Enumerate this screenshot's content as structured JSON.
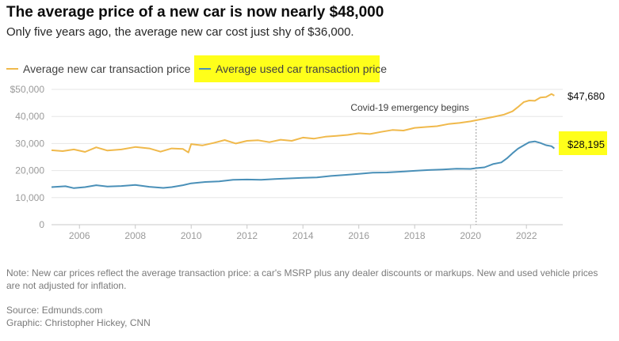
{
  "header": {
    "title": "The average price of a new car is now nearly $48,000",
    "subtitle": "Only five years ago, the average new car cost just shy of $36,000."
  },
  "legend": [
    {
      "label": "Average new car transaction price",
      "color": "#f0b94b"
    },
    {
      "label": "Average used car transaction price",
      "color": "#4a90b8",
      "highlighted": true
    }
  ],
  "highlight_color": "#ffff1a",
  "chart_data": {
    "type": "line",
    "x_range": [
      2005,
      2023.3
    ],
    "ylim": [
      0,
      50000
    ],
    "y_ticks": [
      0,
      10000,
      20000,
      30000,
      40000,
      50000
    ],
    "y_tick_labels": [
      "0",
      "10,000",
      "20,000",
      "30,000",
      "40,000",
      "$50,000"
    ],
    "x_ticks": [
      2006,
      2008,
      2010,
      2012,
      2014,
      2016,
      2018,
      2020,
      2022
    ],
    "x_tick_labels": [
      "2006",
      "2008",
      "2010",
      "2012",
      "2014",
      "2016",
      "2018",
      "2020",
      "2022"
    ],
    "grid": true,
    "annotation": {
      "x": 2020.2,
      "label": "Covid-19 emergency begins"
    },
    "series": [
      {
        "name": "Average new car transaction price",
        "color": "#f0b94b",
        "end_label": "$47,680",
        "points": [
          [
            2005.0,
            27500
          ],
          [
            2005.4,
            27200
          ],
          [
            2005.8,
            27800
          ],
          [
            2006.2,
            26900
          ],
          [
            2006.6,
            28600
          ],
          [
            2007.0,
            27400
          ],
          [
            2007.5,
            27800
          ],
          [
            2008.0,
            28700
          ],
          [
            2008.5,
            28200
          ],
          [
            2008.9,
            27000
          ],
          [
            2009.3,
            28200
          ],
          [
            2009.7,
            28000
          ],
          [
            2009.9,
            26700
          ],
          [
            2010.0,
            29800
          ],
          [
            2010.4,
            29300
          ],
          [
            2010.8,
            30200
          ],
          [
            2011.2,
            31300
          ],
          [
            2011.6,
            30000
          ],
          [
            2012.0,
            31000
          ],
          [
            2012.4,
            31200
          ],
          [
            2012.8,
            30500
          ],
          [
            2013.2,
            31400
          ],
          [
            2013.6,
            31000
          ],
          [
            2014.0,
            32200
          ],
          [
            2014.4,
            31800
          ],
          [
            2014.8,
            32500
          ],
          [
            2015.2,
            32800
          ],
          [
            2015.6,
            33200
          ],
          [
            2016.0,
            33800
          ],
          [
            2016.4,
            33500
          ],
          [
            2016.8,
            34300
          ],
          [
            2017.2,
            35000
          ],
          [
            2017.6,
            34800
          ],
          [
            2018.0,
            35800
          ],
          [
            2018.4,
            36100
          ],
          [
            2018.8,
            36400
          ],
          [
            2019.2,
            37200
          ],
          [
            2019.6,
            37600
          ],
          [
            2020.0,
            38200
          ],
          [
            2020.4,
            39000
          ],
          [
            2020.8,
            39800
          ],
          [
            2021.2,
            40700
          ],
          [
            2021.5,
            41900
          ],
          [
            2021.7,
            43500
          ],
          [
            2021.9,
            45300
          ],
          [
            2022.1,
            45900
          ],
          [
            2022.3,
            45800
          ],
          [
            2022.5,
            47000
          ],
          [
            2022.7,
            47200
          ],
          [
            2022.9,
            48300
          ],
          [
            2023.0,
            47680
          ]
        ]
      },
      {
        "name": "Average used car transaction price",
        "color": "#4a90b8",
        "end_label": "$28,195",
        "points": [
          [
            2005.0,
            13900
          ],
          [
            2005.5,
            14200
          ],
          [
            2005.8,
            13500
          ],
          [
            2006.2,
            13900
          ],
          [
            2006.6,
            14600
          ],
          [
            2007.0,
            14100
          ],
          [
            2007.5,
            14300
          ],
          [
            2008.0,
            14700
          ],
          [
            2008.5,
            14000
          ],
          [
            2009.0,
            13600
          ],
          [
            2009.3,
            13900
          ],
          [
            2009.7,
            14600
          ],
          [
            2010.0,
            15300
          ],
          [
            2010.5,
            15800
          ],
          [
            2011.0,
            16000
          ],
          [
            2011.5,
            16600
          ],
          [
            2012.0,
            16700
          ],
          [
            2012.5,
            16600
          ],
          [
            2013.0,
            16900
          ],
          [
            2013.5,
            17100
          ],
          [
            2014.0,
            17300
          ],
          [
            2014.5,
            17500
          ],
          [
            2015.0,
            18000
          ],
          [
            2015.5,
            18400
          ],
          [
            2016.0,
            18800
          ],
          [
            2016.5,
            19200
          ],
          [
            2017.0,
            19300
          ],
          [
            2017.5,
            19600
          ],
          [
            2018.0,
            19900
          ],
          [
            2018.5,
            20200
          ],
          [
            2019.0,
            20400
          ],
          [
            2019.5,
            20700
          ],
          [
            2020.0,
            20600
          ],
          [
            2020.2,
            20900
          ],
          [
            2020.5,
            21200
          ],
          [
            2020.8,
            22400
          ],
          [
            2021.1,
            23000
          ],
          [
            2021.3,
            24500
          ],
          [
            2021.5,
            26400
          ],
          [
            2021.7,
            28100
          ],
          [
            2021.9,
            29300
          ],
          [
            2022.1,
            30500
          ],
          [
            2022.3,
            30800
          ],
          [
            2022.5,
            30200
          ],
          [
            2022.7,
            29400
          ],
          [
            2022.9,
            29000
          ],
          [
            2023.0,
            28195
          ]
        ]
      }
    ]
  },
  "footer": {
    "note": "Note: New car prices reflect the average transaction price: a car's MSRP plus any dealer discounts or markups. New and used vehicle prices are not adjusted for inflation.",
    "source": "Source: Edmunds.com",
    "graphic": "Graphic: Christopher Hickey, CNN"
  }
}
